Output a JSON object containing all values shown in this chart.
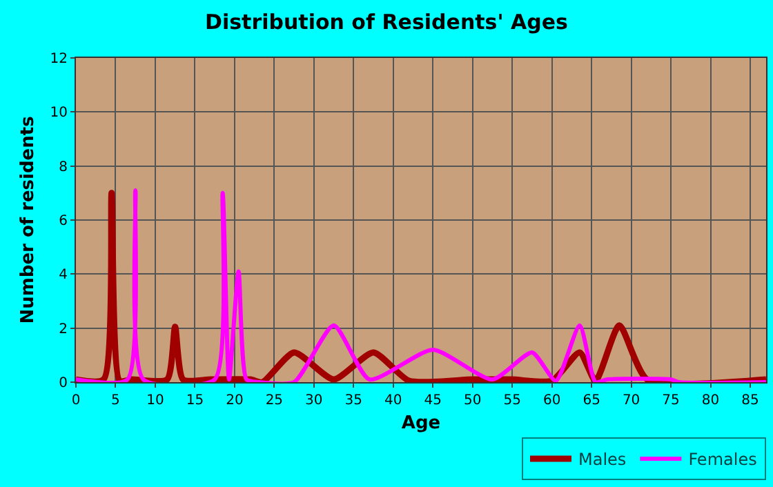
{
  "chart_data": {
    "type": "line",
    "title": "Distribution of Residents' Ages",
    "xlabel": "Age",
    "ylabel": "Number of residents",
    "xlim": [
      0,
      87
    ],
    "xticks": [
      0,
      5,
      10,
      15,
      20,
      25,
      30,
      35,
      40,
      45,
      50,
      55,
      60,
      65,
      70,
      75,
      80,
      85
    ],
    "ylim": [
      0,
      12
    ],
    "yticks": [
      0,
      2,
      4,
      6,
      8,
      10,
      12
    ],
    "grid": true,
    "legend": "bottom right",
    "marker": "none",
    "line_style": "solid",
    "series": [
      {
        "name": "Males",
        "color": "#a00000",
        "x": [
          0,
          3.5,
          4.5,
          5.5,
          7,
          11.5,
          12.5,
          13.5,
          17,
          22,
          23.5,
          27.5,
          32.5,
          37.5,
          42,
          50,
          55,
          60,
          63.5,
          65.5,
          68.5,
          72,
          87
        ],
        "values": [
          0.1,
          0.1,
          7,
          0.05,
          0.1,
          0.1,
          2.05,
          0.1,
          0.1,
          0.1,
          0,
          1.1,
          0.1,
          1.1,
          0.05,
          0.1,
          0.1,
          0.05,
          1.1,
          0.05,
          2.1,
          0.1,
          0.1
        ]
      },
      {
        "name": "Females",
        "color": "#ff00ff",
        "x": [
          0,
          6.5,
          7.5,
          8.5,
          17.5,
          18.5,
          19.3,
          20.5,
          21.5,
          23,
          27.5,
          32.5,
          37,
          45,
          52.5,
          57.5,
          60.5,
          63.5,
          65.5,
          67,
          75,
          76,
          87
        ],
        "values": [
          0.1,
          0.1,
          7.1,
          0.1,
          0.1,
          7,
          0.1,
          4.1,
          0.1,
          0,
          0,
          2.1,
          0.1,
          1.2,
          0.1,
          1.1,
          0.05,
          2.1,
          0,
          0.1,
          0.1,
          0,
          0
        ]
      }
    ]
  }
}
